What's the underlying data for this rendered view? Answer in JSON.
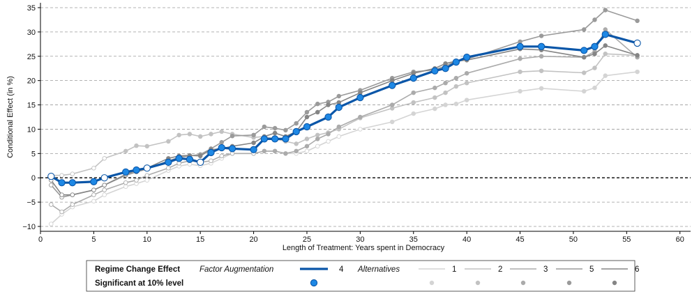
{
  "colors": {
    "main": "#0a56a8",
    "main_marker": "#1e88e5",
    "alt1": "#d4d4d4",
    "alt2": "#c2c2c2",
    "alt3": "#ababab",
    "alt5": "#9a9a9a",
    "alt6": "#858585",
    "grid": "#9a9a9a",
    "zero_line": "#000000"
  },
  "chart_data": {
    "type": "line",
    "xlabel": "Length of Treatment: Years spent in Democracy",
    "ylabel": "Conditional Effect (in %)",
    "xlim": [
      0,
      61
    ],
    "ylim": [
      -11,
      36
    ],
    "xticks": [
      0,
      5,
      10,
      15,
      20,
      25,
      30,
      35,
      40,
      45,
      50,
      55,
      60
    ],
    "yticks": [
      -10,
      -5,
      0,
      5,
      10,
      15,
      20,
      25,
      30,
      35
    ],
    "ytick_labels": [
      "−10",
      "−5",
      "0",
      "5",
      "10",
      "15",
      "20",
      "25",
      "30",
      "35"
    ],
    "grid": "horizontal dashed",
    "reference_line": 0,
    "series": [
      {
        "name": "1",
        "style": "alt1",
        "x": [
          1,
          2,
          3,
          5,
          6,
          8,
          9,
          10,
          12,
          13,
          14,
          15,
          16,
          17,
          18,
          20,
          21,
          22,
          23,
          24,
          25,
          26,
          27,
          28,
          30,
          33,
          35,
          37,
          38,
          39,
          40,
          45,
          47,
          51,
          52,
          53,
          56
        ],
        "y": [
          -9.5,
          -7.5,
          -6,
          -4.8,
          -3.5,
          -1.8,
          -1.2,
          -0.5,
          1.5,
          2.4,
          2.8,
          2.5,
          3,
          4,
          5,
          5,
          5.5,
          5.5,
          5,
          5,
          5.5,
          6.5,
          7.5,
          8.5,
          10,
          11.5,
          13.2,
          14.2,
          15,
          15.2,
          16,
          17.8,
          18.4,
          17.8,
          18.5,
          21,
          21.8
        ],
        "significant": [
          false,
          false,
          false,
          false,
          false,
          false,
          false,
          false,
          false,
          false,
          false,
          false,
          false,
          false,
          false,
          false,
          false,
          false,
          false,
          false,
          false,
          false,
          false,
          false,
          false,
          true,
          true,
          true,
          true,
          true,
          true,
          true,
          true,
          true,
          true,
          true,
          true
        ]
      },
      {
        "name": "2",
        "style": "alt2",
        "x": [
          1,
          2,
          3,
          5,
          6,
          8,
          9,
          10,
          12,
          13,
          14,
          15,
          16,
          17,
          18,
          20,
          21,
          22,
          23,
          24,
          25,
          26,
          27,
          28,
          30,
          33,
          35,
          37,
          38,
          39,
          40,
          45,
          47,
          51,
          52,
          53,
          56
        ],
        "y": [
          0.5,
          0.5,
          0.8,
          2,
          4,
          5.5,
          6.6,
          6.5,
          7.5,
          8.8,
          9,
          8.5,
          9,
          9.5,
          9,
          8.3,
          8.5,
          8,
          7.5,
          7,
          8,
          8.8,
          9.3,
          10,
          12.3,
          14.3,
          15.5,
          16.5,
          17.5,
          18.8,
          19.5,
          21.8,
          22,
          21.6,
          22.6,
          25.5,
          25.2
        ],
        "significant": [
          false,
          false,
          false,
          false,
          false,
          true,
          true,
          true,
          true,
          true,
          true,
          true,
          true,
          true,
          true,
          true,
          true,
          true,
          true,
          true,
          true,
          true,
          true,
          true,
          true,
          true,
          true,
          true,
          true,
          true,
          true,
          true,
          true,
          true,
          true,
          true,
          true
        ]
      },
      {
        "name": "3",
        "style": "alt3",
        "x": [
          1,
          2,
          3,
          5,
          6,
          8,
          9,
          10,
          12,
          13,
          14,
          15,
          16,
          17,
          18,
          20,
          21,
          22,
          23,
          24,
          25,
          26,
          27,
          28,
          30,
          33,
          35,
          37,
          38,
          39,
          40,
          45,
          47,
          51,
          52,
          53,
          56
        ],
        "y": [
          -5.5,
          -7,
          -5.5,
          -3.5,
          -2.5,
          -1,
          -0.5,
          0.5,
          2,
          3,
          3.5,
          3.2,
          3.5,
          4.5,
          5,
          5,
          5.5,
          5.5,
          5,
          5.5,
          6.5,
          8,
          9,
          10.5,
          12.5,
          15,
          17.5,
          18.5,
          19.5,
          20.5,
          21.5,
          24.5,
          25,
          24.8,
          26,
          30.5,
          24.8
        ],
        "significant": [
          false,
          false,
          false,
          false,
          false,
          false,
          false,
          false,
          false,
          false,
          false,
          false,
          false,
          false,
          false,
          false,
          true,
          true,
          true,
          true,
          true,
          true,
          true,
          true,
          true,
          true,
          true,
          true,
          true,
          true,
          true,
          true,
          true,
          true,
          true,
          true,
          true
        ]
      },
      {
        "name": "5",
        "style": "alt5",
        "x": [
          1,
          2,
          3,
          5,
          6,
          8,
          9,
          10,
          12,
          13,
          14,
          15,
          16,
          17,
          18,
          20,
          21,
          22,
          23,
          24,
          25,
          26,
          27,
          28,
          30,
          33,
          35,
          37,
          38,
          39,
          40,
          45,
          47,
          51,
          52,
          53,
          56
        ],
        "y": [
          -1.5,
          -4,
          -3.5,
          -2.5,
          -1.5,
          0.5,
          1.2,
          1.8,
          3.5,
          4.2,
          4.5,
          4.8,
          6,
          7.3,
          8.6,
          8.8,
          10.5,
          10.2,
          9.8,
          11.2,
          13.5,
          15.2,
          15.6,
          16.8,
          18,
          20.5,
          21.8,
          22.2,
          23,
          24,
          24.4,
          28,
          29.2,
          30.5,
          32.5,
          34.5,
          32.3
        ],
        "significant": [
          false,
          false,
          false,
          false,
          false,
          false,
          false,
          false,
          true,
          true,
          true,
          true,
          true,
          true,
          true,
          true,
          true,
          true,
          true,
          true,
          true,
          true,
          true,
          true,
          true,
          true,
          true,
          true,
          true,
          true,
          true,
          true,
          true,
          true,
          true,
          true,
          true
        ]
      },
      {
        "name": "6",
        "style": "alt6",
        "x": [
          1,
          2,
          3,
          5,
          6,
          8,
          9,
          10,
          12,
          13,
          14,
          15,
          16,
          17,
          18,
          20,
          21,
          22,
          23,
          24,
          25,
          26,
          27,
          28,
          30,
          33,
          35,
          37,
          38,
          39,
          40,
          45,
          47,
          51,
          52,
          53,
          56
        ],
        "y": [
          -0.5,
          -3.5,
          -3.5,
          -2.5,
          -1.5,
          0.7,
          1.5,
          2,
          4,
          4.5,
          4.6,
          4.5,
          5.8,
          6,
          6.5,
          7.2,
          8.5,
          9.2,
          8.5,
          9.5,
          12.5,
          13.5,
          15,
          15.5,
          17.5,
          20,
          21.5,
          22.5,
          23.5,
          24,
          24.2,
          26.5,
          26.3,
          24.8,
          25.5,
          27.2,
          25.2
        ],
        "significant": [
          false,
          false,
          false,
          false,
          false,
          false,
          false,
          false,
          true,
          true,
          true,
          true,
          true,
          true,
          true,
          true,
          true,
          true,
          true,
          true,
          true,
          true,
          true,
          true,
          true,
          true,
          true,
          true,
          true,
          true,
          true,
          true,
          true,
          true,
          true,
          true,
          true
        ]
      },
      {
        "name": "4",
        "style": "main",
        "x": [
          1,
          2,
          3,
          5,
          6,
          8,
          9,
          10,
          12,
          13,
          14,
          15,
          16,
          17,
          18,
          20,
          21,
          22,
          23,
          24,
          25,
          27,
          28,
          30,
          33,
          35,
          37,
          38,
          39,
          40,
          45,
          47,
          51,
          52,
          53,
          56
        ],
        "y": [
          0.3,
          -1,
          -1,
          -0.8,
          0,
          1.2,
          1.6,
          2,
          3.2,
          4,
          3.8,
          3.2,
          5.2,
          6.2,
          6,
          5.8,
          8,
          8,
          8,
          9.5,
          10.5,
          12.5,
          14.5,
          16.5,
          19,
          20.5,
          22,
          22.5,
          23.8,
          24.8,
          27,
          27,
          26.2,
          27,
          29.5,
          27.7
        ],
        "significant": [
          false,
          true,
          true,
          true,
          false,
          true,
          true,
          false,
          true,
          true,
          true,
          false,
          true,
          true,
          true,
          true,
          true,
          true,
          true,
          true,
          true,
          true,
          true,
          true,
          true,
          true,
          true,
          true,
          true,
          true,
          true,
          true,
          true,
          true,
          true,
          false
        ]
      }
    ]
  },
  "legend": {
    "row1_title": "Regime Change Effect",
    "row1_method": "Factor Augmentation",
    "main_label": "4",
    "alternatives_label": "Alternatives",
    "alt_labels": [
      "1",
      "2",
      "3",
      "5",
      "6"
    ],
    "row2_title": "Significant at 10% level"
  }
}
